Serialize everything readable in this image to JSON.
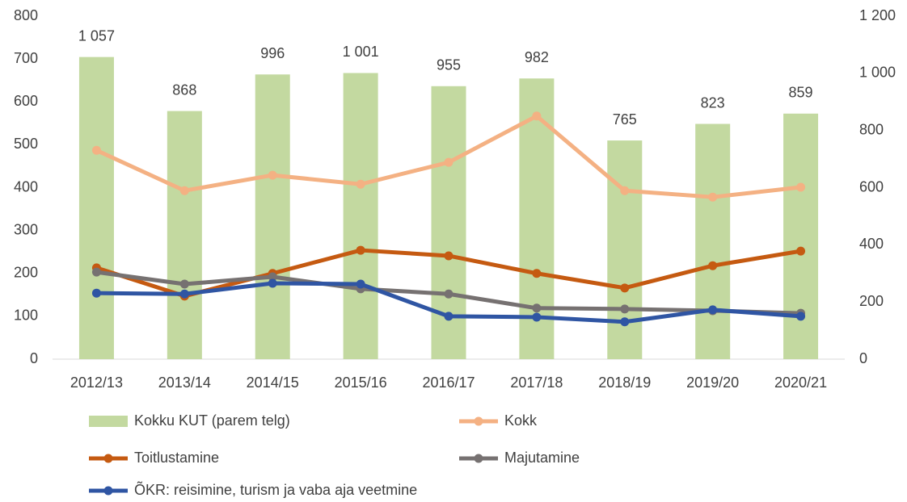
{
  "chart_data": {
    "type": "bar_line",
    "categories": [
      "2012/13",
      "2013/14",
      "2014/15",
      "2015/16",
      "2016/17",
      "2017/18",
      "2018/19",
      "2019/20",
      "2020/21"
    ],
    "series": [
      {
        "name": "Kokku KUT (parem telg)",
        "type": "bar",
        "axis": "y2",
        "color": "#c3d9a0",
        "values": [
          1057,
          868,
          996,
          1001,
          955,
          982,
          765,
          823,
          859
        ],
        "value_labels": [
          "1 057",
          "868",
          "996",
          "1 001",
          "955",
          "982",
          "765",
          "823",
          "859"
        ]
      },
      {
        "name": "Kokk",
        "type": "line",
        "color": "#f4b183",
        "values": [
          487,
          393,
          429,
          408,
          459,
          567,
          393,
          378,
          401
        ]
      },
      {
        "name": "Toitlustamine",
        "type": "line",
        "color": "#c55a11",
        "values": [
          213,
          147,
          200,
          254,
          241,
          200,
          166,
          218,
          252
        ]
      },
      {
        "name": "Majutamine",
        "type": "line",
        "color": "#767171",
        "values": [
          203,
          175,
          192,
          164,
          152,
          119,
          117,
          113,
          107
        ]
      },
      {
        "name": "ÕKR: reisimine, turism ja vaba aja veetmine",
        "type": "line",
        "color": "#2f55a3",
        "values": [
          154,
          152,
          177,
          175,
          100,
          98,
          87,
          115,
          100
        ]
      }
    ],
    "ylim": [
      0,
      800
    ],
    "yticks": [
      0,
      100,
      200,
      300,
      400,
      500,
      600,
      700,
      800
    ],
    "y2lim": [
      0,
      1200
    ],
    "y2ticks": [
      0,
      200,
      400,
      600,
      800,
      {
        "value": 1000,
        "label": "1 000"
      },
      {
        "value": 1200,
        "label": "1 200"
      }
    ],
    "grid": false,
    "legend": "bottom"
  }
}
